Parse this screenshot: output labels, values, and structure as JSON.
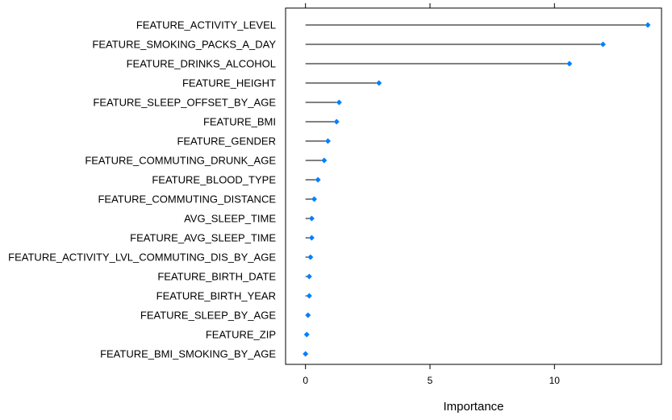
{
  "chart_data": {
    "type": "lollipop",
    "xlabel": "Importance",
    "ylabel": "",
    "title": "",
    "xlim": [
      -0.8,
      14.3
    ],
    "x_ticks": [
      0,
      5,
      10
    ],
    "x_tick_labels": [
      "0",
      "5",
      "10"
    ],
    "grid": false,
    "legend": "none",
    "marker_color": "#0080ff",
    "stem_color": "#000000",
    "categories": [
      "FEATURE_ACTIVITY_LEVEL",
      "FEATURE_SMOKING_PACKS_A_DAY",
      "FEATURE_DRINKS_ALCOHOL",
      "FEATURE_HEIGHT",
      "FEATURE_SLEEP_OFFSET_BY_AGE",
      "FEATURE_BMI",
      "FEATURE_GENDER",
      "FEATURE_COMMUTING_DRUNK_AGE",
      "FEATURE_BLOOD_TYPE",
      "FEATURE_COMMUTING_DISTANCE",
      "AVG_SLEEP_TIME",
      "FEATURE_AVG_SLEEP_TIME",
      "FEATURE_ACTIVITY_LVL_COMMUTING_DIS_BY_AGE",
      "FEATURE_BIRTH_DATE",
      "FEATURE_BIRTH_YEAR",
      "FEATURE_SLEEP_BY_AGE",
      "FEATURE_ZIP",
      "FEATURE_BMI_SMOKING_BY_AGE"
    ],
    "values": [
      13.75,
      11.95,
      10.6,
      2.95,
      1.35,
      1.25,
      0.9,
      0.75,
      0.5,
      0.35,
      0.25,
      0.25,
      0.2,
      0.15,
      0.15,
      0.1,
      0.05,
      0.0
    ]
  }
}
